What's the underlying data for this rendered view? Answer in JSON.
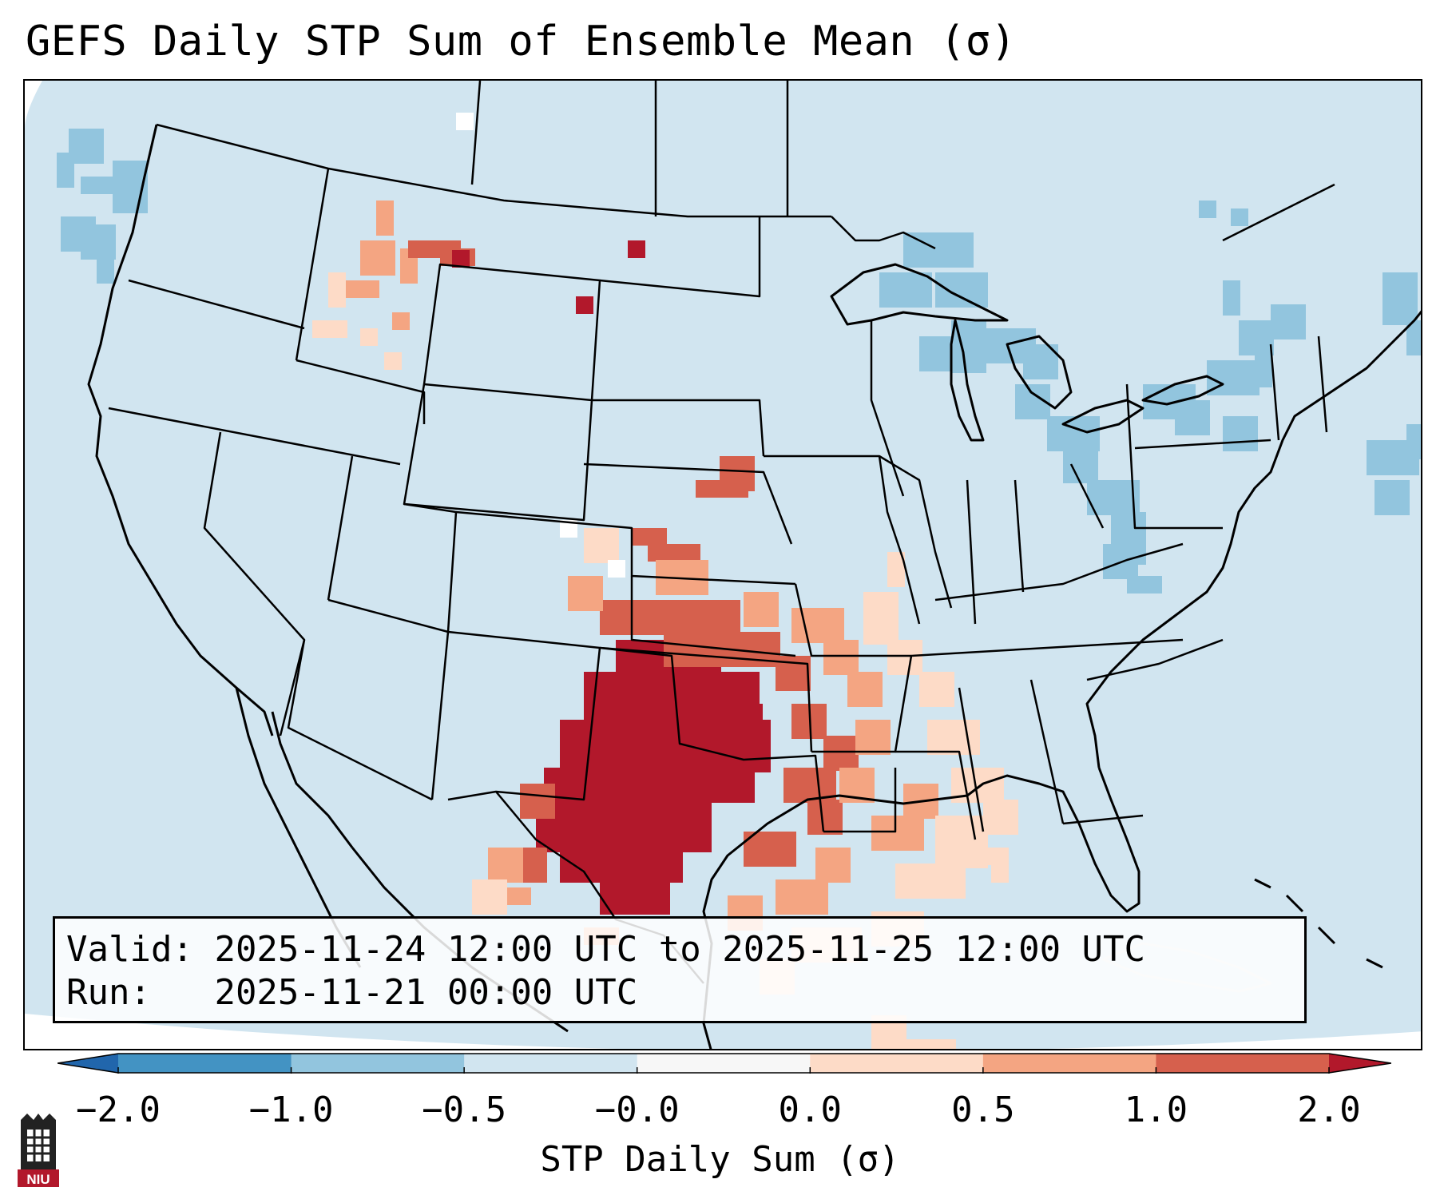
{
  "title": "GEFS Daily STP Sum of Ensemble Mean (σ)",
  "info": {
    "valid_label": "Valid:",
    "valid_value": "2025-11-24 12:00 UTC to 2025-11-25 12:00 UTC",
    "run_label": "Run:",
    "run_value": "2025-11-21 00:00 UTC"
  },
  "colorbar": {
    "label": "STP Daily Sum (σ)",
    "ticks": [
      "−2.0",
      "−1.0",
      "−0.5",
      "−0.0",
      "0.0",
      "0.5",
      "1.0",
      "2.0"
    ],
    "colors": [
      "#3f86c0",
      "#8ec1de",
      "#d1e5f0",
      "#f7f7f7",
      "#fddbc7",
      "#f4a582",
      "#d6604d",
      "#b2182b"
    ],
    "extend": "both"
  },
  "map": {
    "region": "CONUS",
    "background_color": "#d1e5f0",
    "outside_domain_color": "#ffffff",
    "highlight_region": "Southern Plains / Texas / Oklahoma / Arkansas / Louisiana",
    "max_category": "≥2.0"
  },
  "logo": {
    "text": "NIU",
    "bg_color": "#b2182b"
  }
}
